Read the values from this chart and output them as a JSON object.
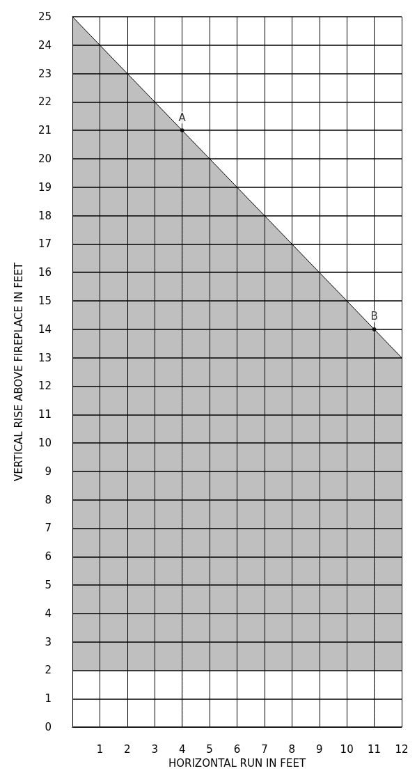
{
  "chart_data": {
    "type": "line",
    "xlabel": "HORIZONTAL RUN IN FEET",
    "ylabel": "VERTICAL RISE ABOVE FIREPLACE IN FEET",
    "xlim": [
      0,
      12
    ],
    "xticks": [
      1,
      2,
      3,
      4,
      5,
      6,
      7,
      8,
      9,
      10,
      11,
      12
    ],
    "ylim": [
      0,
      25
    ],
    "yticks": [
      0,
      1,
      2,
      3,
      4,
      5,
      6,
      7,
      8,
      9,
      10,
      11,
      12,
      13,
      14,
      15,
      16,
      17,
      18,
      19,
      20,
      21,
      22,
      23,
      24,
      25
    ],
    "grid": true,
    "series": [
      {
        "type": "line",
        "color": "#000000",
        "x": [
          0,
          12
        ],
        "values": [
          25,
          13
        ],
        "lower": [
          2,
          2
        ],
        "upper": [
          25,
          13
        ]
      },
      {
        "color": "#000000",
        "x": [
          4,
          4
        ],
        "values": [
          21,
          0
        ],
        "line_style": "dashed"
      },
      {
        "color": "#000000",
        "x": [
          11,
          11
        ],
        "values": [
          14,
          0
        ],
        "line_style": "dashed"
      },
      {
        "type": "scatter",
        "color": "#000000",
        "x": [
          4,
          11
        ],
        "values": [
          21,
          14
        ],
        "marker": "circle"
      }
    ],
    "annotations": [
      {
        "text": "A",
        "x": 4,
        "y": 21
      },
      {
        "text": "B",
        "x": 11,
        "y": 14
      }
    ]
  }
}
